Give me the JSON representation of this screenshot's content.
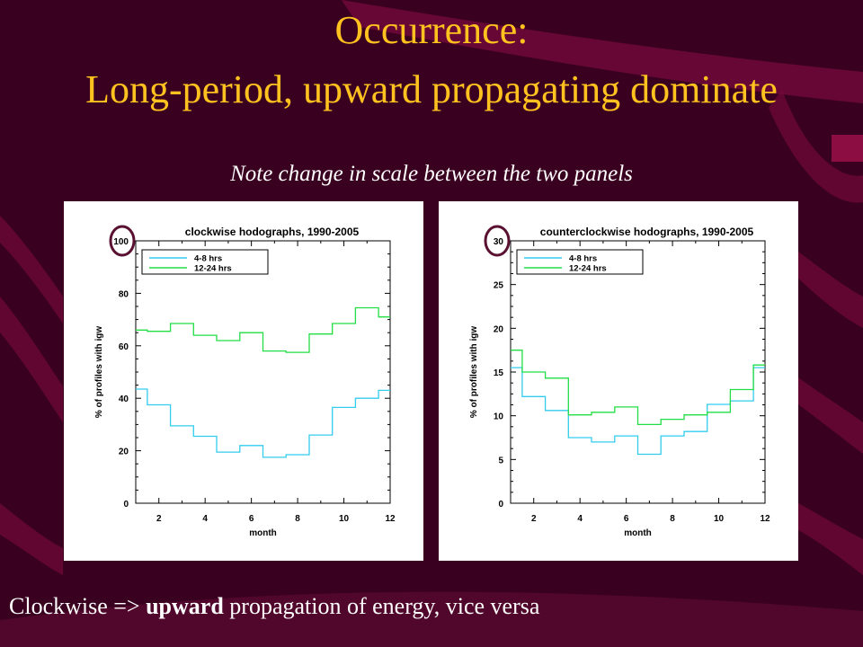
{
  "slide": {
    "title_line1": "Occurrence:",
    "title_line2": "Long-period, upward propagating dominate",
    "note": "Note change in scale between the two panels",
    "caption_pre": "Clockwise => ",
    "caption_bold": "upward",
    "caption_post": " propagation of energy, vice versa"
  },
  "colors": {
    "background": "#3a0020",
    "stripe": "#7a0a3e",
    "title": "#ffc21f",
    "series_4_8": "#33ccee",
    "series_12_24": "#22dd44",
    "highlight_circle": "#5a1030"
  },
  "chart_data": [
    {
      "type": "line",
      "step": true,
      "title": "clockwise hodographs, 1990-2005",
      "xlabel": "month",
      "ylabel": "% of profiles with igw",
      "xlim": [
        1,
        12
      ],
      "ylim": [
        0,
        100
      ],
      "x_ticks": [
        2,
        4,
        6,
        8,
        10,
        12
      ],
      "y_ticks": [
        0,
        20,
        40,
        60,
        80,
        100
      ],
      "highlighted_tick": "100",
      "legend": "top-left",
      "x": [
        1,
        2,
        3,
        4,
        5,
        6,
        7,
        8,
        9,
        10,
        11,
        12
      ],
      "series": [
        {
          "name": "4-8 hrs",
          "color": "#33ccee",
          "values": [
            43.5,
            37.5,
            29.5,
            25.5,
            19.5,
            22,
            17.5,
            18.5,
            26,
            36.5,
            40,
            43
          ]
        },
        {
          "name": "12-24 hrs",
          "color": "#22dd44",
          "values": [
            66,
            65.5,
            68.5,
            64,
            62,
            65,
            58,
            57.5,
            64.5,
            68.5,
            74.5,
            71
          ]
        }
      ]
    },
    {
      "type": "line",
      "step": true,
      "title": "counterclockwise hodographs, 1990-2005",
      "xlabel": "month",
      "ylabel": "% of profiles with igw",
      "xlim": [
        1,
        12
      ],
      "ylim": [
        0,
        30
      ],
      "x_ticks": [
        2,
        4,
        6,
        8,
        10,
        12
      ],
      "y_ticks": [
        0,
        5,
        10,
        15,
        20,
        25,
        30
      ],
      "highlighted_tick": "30",
      "legend": "top-left",
      "x": [
        1,
        2,
        3,
        4,
        5,
        6,
        7,
        8,
        9,
        10,
        11,
        12
      ],
      "series": [
        {
          "name": "4-8 hrs",
          "color": "#33ccee",
          "values": [
            15.5,
            12.2,
            10.6,
            7.5,
            7,
            7.7,
            5.6,
            7.7,
            8.2,
            11.3,
            11.7,
            15.5
          ]
        },
        {
          "name": "12-24 hrs",
          "color": "#22dd44",
          "values": [
            17.5,
            15,
            14.3,
            10.1,
            10.4,
            11,
            9,
            9.6,
            10.1,
            10.4,
            13,
            15.8
          ]
        }
      ]
    }
  ]
}
